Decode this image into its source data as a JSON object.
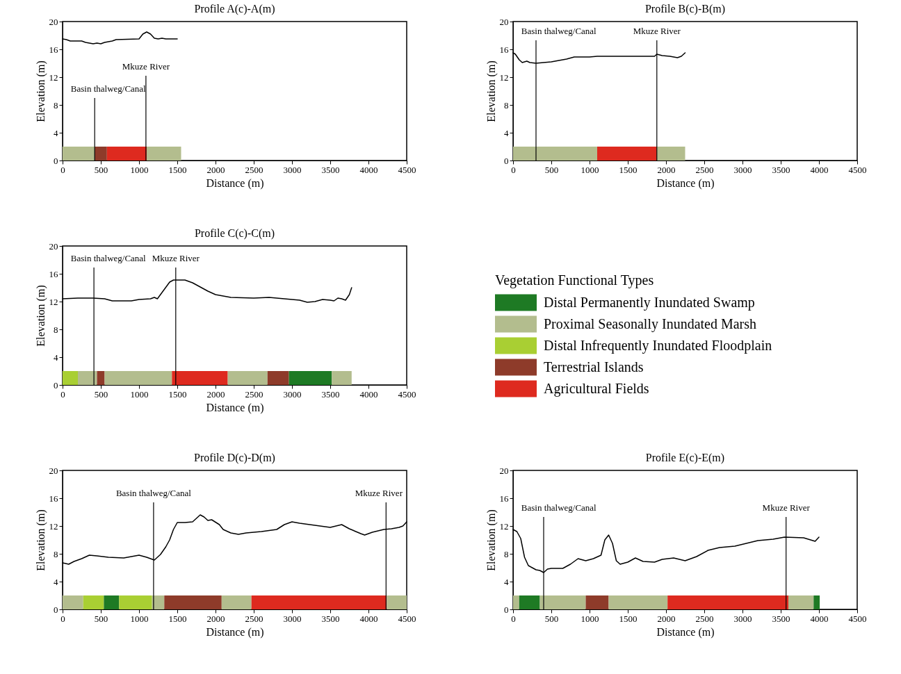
{
  "chart_data": [
    {
      "type": "line",
      "title": "Profile A(c)-A(m)",
      "xlabel": "Distance (m)",
      "ylabel": "Elevation (m)",
      "xlim": [
        0,
        4500
      ],
      "ylim": [
        0,
        20
      ],
      "xticks": [
        0,
        500,
        1000,
        1500,
        2000,
        2500,
        3000,
        3500,
        4000,
        4500
      ],
      "yticks": [
        0,
        4,
        8,
        12,
        16,
        20
      ],
      "grid": false,
      "x": [
        0,
        50,
        100,
        250,
        300,
        400,
        450,
        500,
        550,
        650,
        700,
        1000,
        1050,
        1100,
        1150,
        1200,
        1250,
        1300,
        1350,
        1400,
        1500
      ],
      "series": [
        {
          "color": "#000000",
          "values": [
            17.5,
            17.4,
            17.2,
            17.2,
            17.0,
            16.8,
            16.9,
            16.8,
            17.0,
            17.2,
            17.4,
            17.5,
            18.2,
            18.5,
            18.2,
            17.6,
            17.5,
            17.6,
            17.5,
            17.5,
            17.5
          ]
        }
      ],
      "bands": [
        {
          "axis": "x",
          "from": 0,
          "to": 420,
          "color": "#b3bd8e"
        },
        {
          "axis": "x",
          "from": 420,
          "to": 580,
          "color": "#8e3b2a"
        },
        {
          "axis": "x",
          "from": 580,
          "to": 1100,
          "color": "#de2a1f"
        },
        {
          "axis": "x",
          "from": 1100,
          "to": 1550,
          "color": "#b3bd8e"
        }
      ],
      "ref_lines": [
        {
          "axis": "x",
          "value": 420,
          "label": "Basin thalweg/Canal"
        },
        {
          "axis": "x",
          "value": 1090,
          "label": "Mkuze River"
        }
      ]
    },
    {
      "type": "line",
      "title": "Profile B(c)-B(m)",
      "xlabel": "Distance (m)",
      "ylabel": "Elevation (m)",
      "xlim": [
        0,
        4500
      ],
      "ylim": [
        0,
        20
      ],
      "xticks": [
        0,
        500,
        1000,
        1500,
        2000,
        2500,
        3000,
        3500,
        4000,
        4500
      ],
      "yticks": [
        0,
        4,
        8,
        12,
        16,
        20
      ],
      "grid": false,
      "x": [
        0,
        30,
        80,
        120,
        150,
        180,
        220,
        300,
        400,
        500,
        600,
        700,
        800,
        1000,
        1100,
        1500,
        1850,
        1880,
        1950,
        2050,
        2150,
        2200,
        2250
      ],
      "series": [
        {
          "color": "#000000",
          "values": [
            15.5,
            15.3,
            14.5,
            14.1,
            14.2,
            14.3,
            14.1,
            14.0,
            14.1,
            14.2,
            14.4,
            14.6,
            14.9,
            14.9,
            15.0,
            15.0,
            15.0,
            15.3,
            15.1,
            15.0,
            14.8,
            15.0,
            15.5
          ]
        }
      ],
      "bands": [
        {
          "axis": "x",
          "from": 0,
          "to": 1100,
          "color": "#b3bd8e"
        },
        {
          "axis": "x",
          "from": 1100,
          "to": 1880,
          "color": "#de2a1f"
        },
        {
          "axis": "x",
          "from": 1880,
          "to": 2250,
          "color": "#b3bd8e"
        }
      ],
      "ref_lines": [
        {
          "axis": "x",
          "value": 300,
          "label": "Basin thalweg/Canal"
        },
        {
          "axis": "x",
          "value": 1880,
          "label": "Mkuze River"
        }
      ]
    },
    {
      "type": "line",
      "title": "Profile C(c)-C(m)",
      "xlabel": "Distance (m)",
      "ylabel": "Elevation (m)",
      "xlim": [
        0,
        4500
      ],
      "ylim": [
        0,
        20
      ],
      "xticks": [
        0,
        500,
        1000,
        1500,
        2000,
        2500,
        3000,
        3500,
        4000,
        4500
      ],
      "yticks": [
        0,
        4,
        8,
        12,
        16,
        20
      ],
      "grid": false,
      "x": [
        0,
        200,
        400,
        550,
        650,
        900,
        1000,
        1150,
        1200,
        1240,
        1300,
        1400,
        1450,
        1600,
        1700,
        1900,
        2000,
        2200,
        2500,
        2700,
        2800,
        3000,
        3100,
        3200,
        3300,
        3400,
        3500,
        3550,
        3600,
        3650,
        3700,
        3750,
        3780
      ],
      "series": [
        {
          "color": "#000000",
          "values": [
            12.4,
            12.5,
            12.5,
            12.4,
            12.1,
            12.1,
            12.3,
            12.4,
            12.6,
            12.4,
            13.3,
            14.8,
            15.1,
            15.1,
            14.7,
            13.5,
            13.0,
            12.6,
            12.5,
            12.6,
            12.5,
            12.3,
            12.2,
            11.9,
            12.0,
            12.3,
            12.2,
            12.1,
            12.5,
            12.4,
            12.2,
            13.0,
            14.0
          ]
        }
      ],
      "bands": [
        {
          "axis": "x",
          "from": 0,
          "to": 200,
          "color": "#a9cf33"
        },
        {
          "axis": "x",
          "from": 200,
          "to": 450,
          "color": "#b3bd8e"
        },
        {
          "axis": "x",
          "from": 450,
          "to": 550,
          "color": "#8e3b2a"
        },
        {
          "axis": "x",
          "from": 550,
          "to": 1430,
          "color": "#b3bd8e"
        },
        {
          "axis": "x",
          "from": 1430,
          "to": 2160,
          "color": "#de2a1f"
        },
        {
          "axis": "x",
          "from": 2160,
          "to": 2680,
          "color": "#b3bd8e"
        },
        {
          "axis": "x",
          "from": 2680,
          "to": 2960,
          "color": "#8e3b2a"
        },
        {
          "axis": "x",
          "from": 2960,
          "to": 3520,
          "color": "#1e7a24"
        },
        {
          "axis": "x",
          "from": 3520,
          "to": 3780,
          "color": "#b3bd8e"
        }
      ],
      "ref_lines": [
        {
          "axis": "x",
          "value": 410,
          "label": "Basin thalweg/Canal"
        },
        {
          "axis": "x",
          "value": 1480,
          "label": "Mkuze River"
        }
      ]
    },
    {
      "type": "other",
      "legend_title": "Vegetation Functional Types",
      "categories": [
        "Distal Permanently Inundated Swamp",
        "Proximal Seasonally Inundated Marsh",
        "Distal Infrequently Inundated Floodplain",
        "Terrestrial Islands",
        "Agricultural Fields"
      ],
      "colors": [
        "#1e7a24",
        "#b3bd8e",
        "#a9cf33",
        "#8e3b2a",
        "#de2a1f"
      ]
    },
    {
      "type": "line",
      "title": "Profile D(c)-D(m)",
      "xlabel": "Distance (m)",
      "ylabel": "Elevation (m)",
      "xlim": [
        0,
        4500
      ],
      "ylim": [
        0,
        20
      ],
      "xticks": [
        0,
        500,
        1000,
        1500,
        2000,
        2500,
        3000,
        3500,
        4000,
        4500
      ],
      "yticks": [
        0,
        4,
        8,
        12,
        16,
        20
      ],
      "grid": false,
      "x": [
        0,
        80,
        150,
        250,
        350,
        450,
        600,
        800,
        900,
        1000,
        1100,
        1200,
        1280,
        1350,
        1400,
        1450,
        1500,
        1600,
        1700,
        1750,
        1800,
        1850,
        1900,
        1950,
        2050,
        2100,
        2200,
        2300,
        2400,
        2600,
        2800,
        2900,
        3000,
        3100,
        3300,
        3500,
        3650,
        3750,
        3900,
        3950,
        4050,
        4200,
        4300,
        4400,
        4450,
        4500
      ],
      "series": [
        {
          "color": "#000000",
          "values": [
            6.7,
            6.5,
            6.9,
            7.3,
            7.8,
            7.7,
            7.5,
            7.4,
            7.6,
            7.8,
            7.5,
            7.1,
            7.9,
            9.0,
            10.0,
            11.5,
            12.5,
            12.5,
            12.6,
            13.1,
            13.6,
            13.3,
            12.8,
            12.9,
            12.2,
            11.5,
            11.0,
            10.8,
            11.0,
            11.2,
            11.5,
            12.2,
            12.6,
            12.4,
            12.1,
            11.8,
            12.2,
            11.6,
            10.9,
            10.7,
            11.1,
            11.5,
            11.6,
            11.8,
            12.0,
            12.6
          ]
        }
      ],
      "bands": [
        {
          "axis": "x",
          "from": 0,
          "to": 270,
          "color": "#b3bd8e"
        },
        {
          "axis": "x",
          "from": 270,
          "to": 540,
          "color": "#a9cf33"
        },
        {
          "axis": "x",
          "from": 540,
          "to": 740,
          "color": "#1e7a24"
        },
        {
          "axis": "x",
          "from": 740,
          "to": 1170,
          "color": "#a9cf33"
        },
        {
          "axis": "x",
          "from": 1170,
          "to": 1330,
          "color": "#b3bd8e"
        },
        {
          "axis": "x",
          "from": 1330,
          "to": 2080,
          "color": "#8e3b2a"
        },
        {
          "axis": "x",
          "from": 2080,
          "to": 2470,
          "color": "#b3bd8e"
        },
        {
          "axis": "x",
          "from": 2470,
          "to": 4240,
          "color": "#de2a1f"
        },
        {
          "axis": "x",
          "from": 4240,
          "to": 4500,
          "color": "#b3bd8e"
        }
      ],
      "ref_lines": [
        {
          "axis": "x",
          "value": 1190,
          "label": "Basin thalweg/Canal"
        },
        {
          "axis": "x",
          "value": 4230,
          "label": "Mkuze River"
        }
      ]
    },
    {
      "type": "line",
      "title": "Profile E(c)-E(m)",
      "xlabel": "Distance (m)",
      "ylabel": "Elevation (m)",
      "xlim": [
        0,
        4500
      ],
      "ylim": [
        0,
        20
      ],
      "xticks": [
        0,
        500,
        1000,
        1500,
        2000,
        2500,
        3000,
        3500,
        4000,
        4500
      ],
      "yticks": [
        0,
        4,
        8,
        12,
        16,
        20
      ],
      "grid": false,
      "x": [
        0,
        50,
        100,
        150,
        200,
        250,
        300,
        350,
        400,
        450,
        500,
        650,
        750,
        850,
        950,
        1050,
        1150,
        1200,
        1250,
        1300,
        1350,
        1400,
        1500,
        1600,
        1700,
        1850,
        1950,
        2100,
        2250,
        2400,
        2550,
        2700,
        2900,
        3050,
        3200,
        3400,
        3550,
        3800,
        3950,
        4000
      ],
      "series": [
        {
          "color": "#000000",
          "values": [
            11.5,
            11.2,
            10.2,
            7.5,
            6.3,
            6.0,
            5.7,
            5.6,
            5.3,
            5.8,
            5.9,
            5.9,
            6.5,
            7.3,
            7.0,
            7.3,
            7.8,
            10.0,
            10.7,
            9.5,
            7.0,
            6.5,
            6.8,
            7.4,
            6.9,
            6.8,
            7.2,
            7.4,
            7.0,
            7.6,
            8.5,
            8.9,
            9.1,
            9.5,
            9.9,
            10.1,
            10.4,
            10.3,
            9.8,
            10.4
          ]
        }
      ],
      "bands": [
        {
          "axis": "x",
          "from": 0,
          "to": 80,
          "color": "#b3bd8e"
        },
        {
          "axis": "x",
          "from": 80,
          "to": 350,
          "color": "#1e7a24"
        },
        {
          "axis": "x",
          "from": 350,
          "to": 950,
          "color": "#b3bd8e"
        },
        {
          "axis": "x",
          "from": 950,
          "to": 1250,
          "color": "#8e3b2a"
        },
        {
          "axis": "x",
          "from": 1250,
          "to": 2020,
          "color": "#b3bd8e"
        },
        {
          "axis": "x",
          "from": 2020,
          "to": 3600,
          "color": "#de2a1f"
        },
        {
          "axis": "x",
          "from": 3600,
          "to": 3930,
          "color": "#b3bd8e"
        },
        {
          "axis": "x",
          "from": 3930,
          "to": 4010,
          "color": "#1e7a24"
        }
      ],
      "ref_lines": [
        {
          "axis": "x",
          "value": 400,
          "label": "Basin thalweg/Canal"
        },
        {
          "axis": "x",
          "value": 3570,
          "label": "Mkuze River"
        }
      ]
    }
  ]
}
